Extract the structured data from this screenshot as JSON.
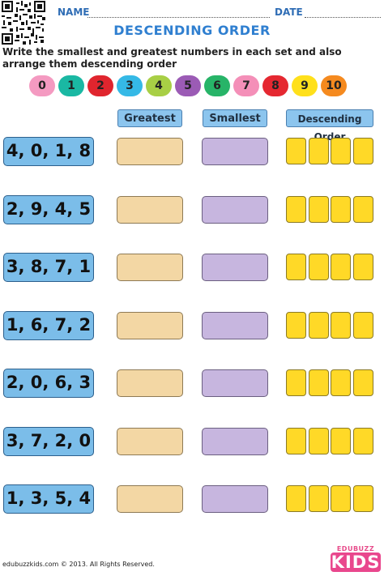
{
  "header": {
    "name_label": "NAME",
    "date_label": "DATE"
  },
  "title": "DESCENDING ORDER",
  "instructions": "Write the smallest and greatest numbers in each set and also arrange them descending order",
  "number_pills": [
    {
      "label": "0",
      "color": "#f49ac1"
    },
    {
      "label": "1",
      "color": "#1ab8a3"
    },
    {
      "label": "2",
      "color": "#e0252e"
    },
    {
      "label": "3",
      "color": "#35b9e6"
    },
    {
      "label": "4",
      "color": "#a8cf45"
    },
    {
      "label": "5",
      "color": "#9b5bb5"
    },
    {
      "label": "6",
      "color": "#27b468"
    },
    {
      "label": "7",
      "color": "#f48fb8"
    },
    {
      "label": "8",
      "color": "#e52831"
    },
    {
      "label": "9",
      "color": "#ffe01b"
    },
    {
      "label": "10",
      "color": "#f58a1f"
    }
  ],
  "columns": {
    "greatest": "Greatest",
    "smallest": "Smallest",
    "descending": "Descending Order"
  },
  "rows": [
    {
      "set": "4, 0, 1, 8"
    },
    {
      "set": "2, 9, 4, 5"
    },
    {
      "set": "3, 8, 7, 1"
    },
    {
      "set": "1, 6, 7, 2"
    },
    {
      "set": "2, 0, 6, 3"
    },
    {
      "set": "3, 7, 2, 0"
    },
    {
      "set": "1, 3, 5, 4"
    }
  ],
  "footer": {
    "copyright": "edubuzzkids.com  ©  2013. All Rights Reserved.",
    "logo_top": "EDUBUZZ",
    "logo_bottom": "KIDS"
  }
}
